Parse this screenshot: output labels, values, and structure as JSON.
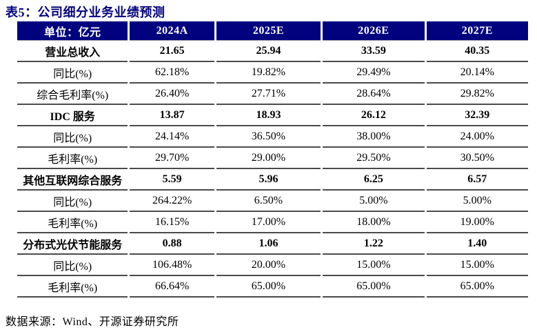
{
  "title": "表5：公司细分业务业绩预测",
  "source": "数据来源：Wind、开源证券研究所",
  "colors": {
    "header_bg": "#02027F",
    "title_text": "#02027F",
    "row_line": "#4a4a4a"
  },
  "table": {
    "header": [
      "单位：亿元",
      "2024A",
      "2025E",
      "2026E",
      "2027E"
    ],
    "rows": [
      {
        "label": "营业总收入",
        "bold": true,
        "values": [
          "21.65",
          "25.94",
          "33.59",
          "40.35"
        ]
      },
      {
        "label": "同比(%)",
        "bold": false,
        "values": [
          "62.18%",
          "19.82%",
          "29.49%",
          "20.14%"
        ]
      },
      {
        "label": "综合毛利率(%)",
        "bold": false,
        "values": [
          "26.40%",
          "27.71%",
          "28.64%",
          "29.82%"
        ]
      },
      {
        "label": "IDC 服务",
        "bold": true,
        "values": [
          "13.87",
          "18.93",
          "26.12",
          "32.39"
        ]
      },
      {
        "label": "同比(%)",
        "bold": false,
        "values": [
          "24.14%",
          "36.50%",
          "38.00%",
          "24.00%"
        ]
      },
      {
        "label": "毛利率(%)",
        "bold": false,
        "values": [
          "29.70%",
          "29.00%",
          "29.50%",
          "30.50%"
        ]
      },
      {
        "label": "其他互联网综合服务",
        "bold": true,
        "values": [
          "5.59",
          "5.96",
          "6.25",
          "6.57"
        ]
      },
      {
        "label": "同比(%)",
        "bold": false,
        "values": [
          "264.22%",
          "6.50%",
          "5.00%",
          "5.00%"
        ]
      },
      {
        "label": "毛利率(%)",
        "bold": false,
        "values": [
          "16.15%",
          "17.00%",
          "18.00%",
          "19.00%"
        ]
      },
      {
        "label": "分布式光伏节能服务",
        "bold": true,
        "values": [
          "0.88",
          "1.06",
          "1.22",
          "1.40"
        ]
      },
      {
        "label": "同比(%)",
        "bold": false,
        "values": [
          "106.48%",
          "20.00%",
          "15.00%",
          "15.00%"
        ]
      },
      {
        "label": "毛利率(%)",
        "bold": false,
        "values": [
          "66.64%",
          "65.00%",
          "65.00%",
          "65.00%"
        ]
      }
    ]
  }
}
